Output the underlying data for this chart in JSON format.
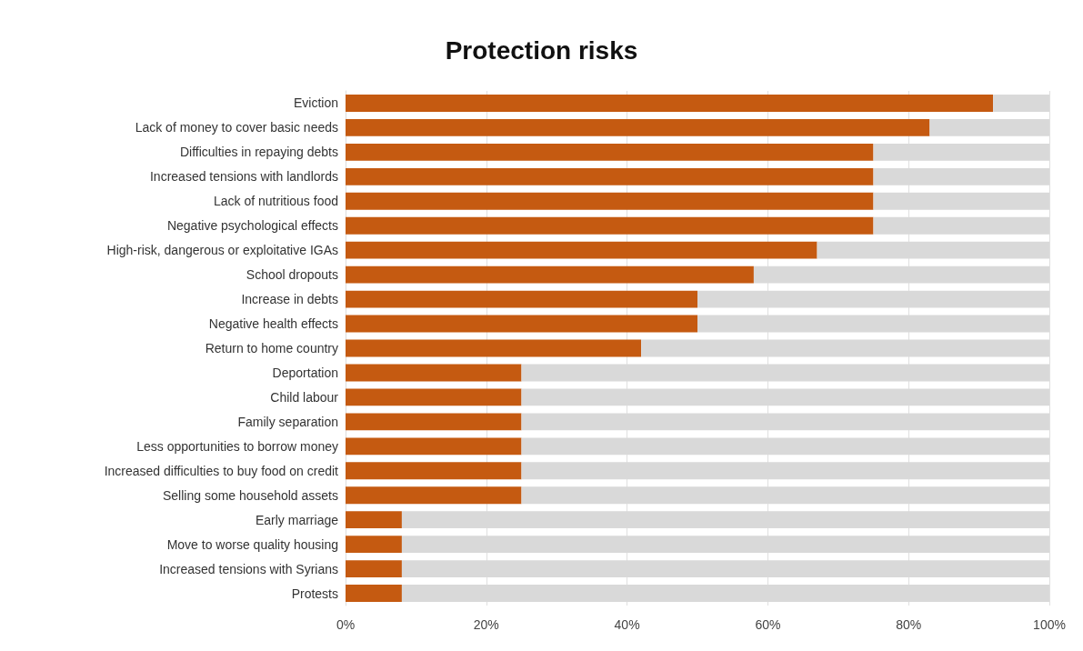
{
  "chart_data": {
    "type": "bar",
    "title": "Protection risks",
    "orientation": "horizontal",
    "stacked": true,
    "categories": [
      "Eviction",
      "Lack of money to cover basic needs",
      "Difficulties in repaying debts",
      "Increased tensions with landlords",
      "Lack of nutritious food",
      "Negative psychological effects",
      "High-risk, dangerous or exploitative IGAs",
      "School dropouts",
      "Increase in debts",
      "Negative health effects",
      "Return to home country",
      "Deportation",
      "Child labour",
      "Family separation",
      "Less opportunities to borrow money",
      "Increased difficulties to buy food on credit",
      "Selling some household assets",
      "Early marriage",
      "Move to worse quality housing",
      "Increased tensions with Syrians",
      "Protests"
    ],
    "series": [
      {
        "color": "#c55a11",
        "values": [
          92,
          83,
          75,
          75,
          75,
          75,
          67,
          58,
          50,
          50,
          42,
          25,
          25,
          25,
          25,
          25,
          25,
          8,
          8,
          8,
          8
        ]
      },
      {
        "color": "#d9d9d9",
        "values": [
          8,
          17,
          25,
          25,
          25,
          25,
          33,
          42,
          50,
          50,
          58,
          75,
          75,
          75,
          75,
          75,
          75,
          92,
          92,
          92,
          92
        ]
      }
    ],
    "xlim": [
      0,
      100
    ],
    "xticks": [
      {
        "value": 0,
        "label": "0%"
      },
      {
        "value": 20,
        "label": "20%"
      },
      {
        "value": 40,
        "label": "40%"
      },
      {
        "value": 60,
        "label": "60%"
      },
      {
        "value": 80,
        "label": "80%"
      },
      {
        "value": 100,
        "label": "100%"
      }
    ],
    "grid": "x"
  }
}
